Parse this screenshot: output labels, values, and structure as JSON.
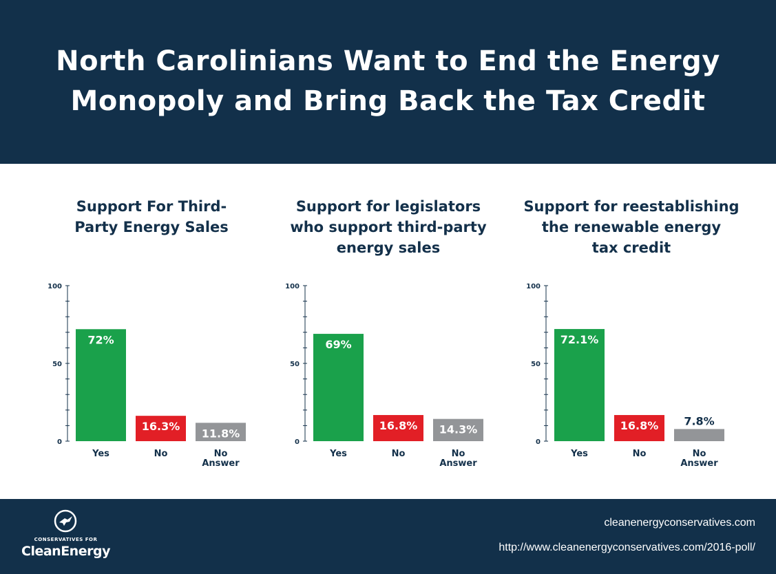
{
  "header": {
    "title_line1": "North Carolinians Want to End the Energy",
    "title_line2": "Monopoly and Bring Back the Tax Credit"
  },
  "colors": {
    "header_bg": "#12304a",
    "yes": "#1aa14b",
    "no": "#e21f26",
    "no_answer": "#939598",
    "title_text": "#13304a"
  },
  "chart_data": [
    {
      "type": "bar",
      "title_lines": [
        "Support For Third-",
        "Party Energy Sales"
      ],
      "categories": [
        "Yes",
        "No",
        "No Answer"
      ],
      "values": [
        72,
        16.3,
        11.8
      ],
      "value_labels": [
        "72%",
        "16.3%",
        "11.8%"
      ],
      "yticks": [
        0,
        50,
        100
      ],
      "ylim": [
        0,
        100
      ],
      "grid": false
    },
    {
      "type": "bar",
      "title_lines": [
        "Support for legislators",
        "who support third-party",
        "energy sales"
      ],
      "categories": [
        "Yes",
        "No",
        "No Answer"
      ],
      "values": [
        69,
        16.8,
        14.3
      ],
      "value_labels": [
        "69%",
        "16.8%",
        "14.3%"
      ],
      "yticks": [
        0,
        50,
        100
      ],
      "ylim": [
        0,
        100
      ],
      "grid": false
    },
    {
      "type": "bar",
      "title_lines": [
        "Support for reestablishing",
        "the renewable energy",
        "tax credit"
      ],
      "categories": [
        "Yes",
        "No",
        "No Answer"
      ],
      "values": [
        72.1,
        16.8,
        7.8
      ],
      "value_labels": [
        "72.1%",
        "16.8%",
        "7.8%"
      ],
      "yticks": [
        0,
        50,
        100
      ],
      "ylim": [
        0,
        100
      ],
      "grid": false
    }
  ],
  "footer": {
    "logo_small": "CONSERVATIVES FOR",
    "logo_big": "CleanEnergy",
    "site": "cleanenergyconservatives.com",
    "url": "http://www.cleanenergyconservatives.com/2016-poll/"
  }
}
